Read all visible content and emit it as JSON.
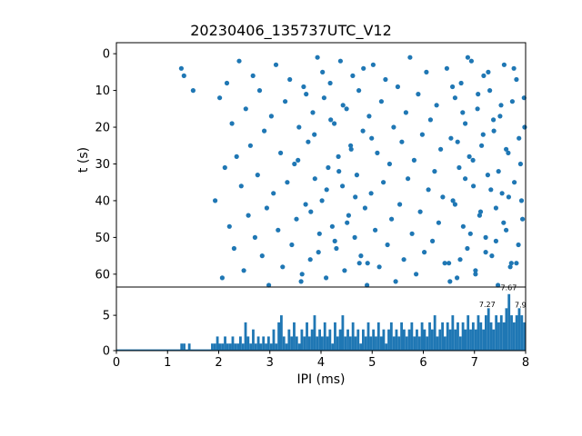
{
  "figure": {
    "title": "20230406_135737UTC_V12"
  },
  "chart_data": [
    {
      "type": "scatter",
      "title": "20230406_135737UTC_V12",
      "xlabel": "",
      "ylabel": "t (s)",
      "xlim": [
        0,
        8
      ],
      "ylim": [
        -3,
        63.5
      ],
      "y_inverted": true,
      "grid": false,
      "legend": "none",
      "marker_color": "#1f77b4",
      "yticks": [
        0,
        10,
        20,
        30,
        40,
        50,
        60
      ],
      "x": [
        1.27,
        1.32,
        1.5,
        1.93,
        2.02,
        2.07,
        2.12,
        2.16,
        2.21,
        2.26,
        2.3,
        2.35,
        2.4,
        2.44,
        2.49,
        2.53,
        2.58,
        2.62,
        2.67,
        2.71,
        2.76,
        2.8,
        2.85,
        2.89,
        2.94,
        2.98,
        3.03,
        3.07,
        3.12,
        3.16,
        3.21,
        3.25,
        3.3,
        3.34,
        3.39,
        3.43,
        3.48,
        3.52,
        3.57,
        3.61,
        3.66,
        3.7,
        3.75,
        3.79,
        3.84,
        3.88,
        3.93,
        3.97,
        3.55,
        3.63,
        3.71,
        3.8,
        3.87,
        3.95,
        4.03,
        4.11,
        4.19,
        4.27,
        4.35,
        4.43,
        4.51,
        4.59,
        4.67,
        4.75,
        4.83,
        4.91,
        4.99,
        4.02,
        4.06,
        4.1,
        4.14,
        4.18,
        4.22,
        4.26,
        4.3,
        4.34,
        4.38,
        4.42,
        4.46,
        4.5,
        4.54,
        4.58,
        4.62,
        4.66,
        4.7,
        4.74,
        4.78,
        4.82,
        4.86,
        4.9,
        4.94,
        4.98,
        5.02,
        5.06,
        5.1,
        5.14,
        5.18,
        5.22,
        5.26,
        5.3,
        5.34,
        5.38,
        5.42,
        5.46,
        5.5,
        5.54,
        5.58,
        5.62,
        5.66,
        5.7,
        5.74,
        5.78,
        5.82,
        5.86,
        5.9,
        5.94,
        5.98,
        6.02,
        6.06,
        6.1,
        6.14,
        6.18,
        6.22,
        6.26,
        6.3,
        6.34,
        6.38,
        6.42,
        6.46,
        6.5,
        6.54,
        6.58,
        6.62,
        6.66,
        6.7,
        6.74,
        6.78,
        6.82,
        6.86,
        6.9,
        6.94,
        6.98,
        7.02,
        7.06,
        7.1,
        7.14,
        7.18,
        7.22,
        7.26,
        7.3,
        7.34,
        7.38,
        7.42,
        7.46,
        7.5,
        7.54,
        7.58,
        7.62,
        7.66,
        7.7,
        7.74,
        7.78,
        7.82,
        7.86,
        7.9,
        7.94,
        7.98,
        6.52,
        6.57,
        6.62,
        6.67,
        6.72,
        6.77,
        6.82,
        6.87,
        6.92,
        6.97,
        7.02,
        7.07,
        7.12,
        7.17,
        7.22,
        7.27,
        7.32,
        7.37,
        7.42,
        7.47,
        7.52,
        7.57,
        7.62,
        7.67,
        7.72,
        7.77,
        7.82,
        7.87,
        7.92,
        7.97
      ],
      "y": [
        4,
        6,
        10,
        40,
        12,
        61,
        31,
        8,
        47,
        19,
        53,
        28,
        2,
        36,
        59,
        15,
        44,
        25,
        6,
        50,
        33,
        10,
        55,
        21,
        42,
        63,
        17,
        38,
        3,
        48,
        27,
        58,
        13,
        35,
        7,
        52,
        30,
        45,
        20,
        62,
        9,
        41,
        24,
        56,
        16,
        34,
        1,
        49,
        29,
        60,
        11,
        43,
        22,
        54,
        5,
        37,
        18,
        51,
        32,
        14,
        46,
        26,
        39,
        57,
        4,
        57,
        23,
        40,
        12,
        61,
        31,
        8,
        47,
        19,
        53,
        28,
        2,
        36,
        59,
        15,
        44,
        25,
        6,
        50,
        33,
        10,
        55,
        21,
        42,
        63,
        17,
        38,
        3,
        48,
        27,
        58,
        13,
        35,
        7,
        52,
        30,
        45,
        20,
        62,
        9,
        41,
        24,
        56,
        16,
        34,
        1,
        49,
        29,
        60,
        11,
        43,
        22,
        54,
        5,
        37,
        18,
        51,
        32,
        14,
        46,
        26,
        39,
        57,
        4,
        57,
        23,
        40,
        12,
        61,
        31,
        8,
        47,
        19,
        53,
        28,
        2,
        36,
        59,
        15,
        44,
        25,
        6,
        50,
        33,
        10,
        55,
        21,
        42,
        63,
        17,
        38,
        3,
        48,
        27,
        58,
        13,
        35,
        7,
        52,
        30,
        45,
        20,
        62,
        9,
        41,
        24,
        56,
        16,
        34,
        1,
        49,
        29,
        60,
        11,
        43,
        22,
        54,
        5,
        37,
        18,
        51,
        32,
        14,
        46,
        26,
        39,
        57,
        4,
        57,
        23,
        40,
        12
      ]
    },
    {
      "type": "bar",
      "title": "",
      "xlabel": "IPI (ms)",
      "ylabel": "",
      "xlim": [
        0,
        8
      ],
      "ylim": [
        0,
        9
      ],
      "grid": false,
      "legend": "none",
      "bar_color": "#1f77b4",
      "bin_start": 0,
      "bin_width": 0.05,
      "xticks": [
        0,
        1,
        2,
        3,
        4,
        5,
        6,
        7,
        8
      ],
      "yticks": [
        0,
        5
      ],
      "values": [
        0,
        0,
        0,
        0,
        0,
        0,
        0,
        0,
        0,
        0,
        0,
        0,
        0,
        0,
        0,
        0,
        0,
        0,
        0,
        0,
        0,
        0,
        0,
        0,
        0,
        1,
        1,
        0,
        1,
        0,
        0,
        0,
        0,
        0,
        0,
        0,
        0,
        1,
        1,
        2,
        1,
        1,
        2,
        1,
        1,
        2,
        1,
        1,
        2,
        1,
        4,
        2,
        1,
        3,
        1,
        2,
        1,
        2,
        1,
        2,
        1,
        3,
        1,
        4,
        5,
        2,
        1,
        3,
        2,
        4,
        2,
        1,
        3,
        2,
        4,
        2,
        3,
        5,
        2,
        3,
        2,
        4,
        2,
        3,
        1,
        4,
        2,
        3,
        5,
        2,
        3,
        2,
        4,
        2,
        3,
        1,
        3,
        2,
        4,
        2,
        3,
        2,
        4,
        2,
        3,
        1,
        3,
        4,
        2,
        3,
        2,
        4,
        3,
        2,
        3,
        4,
        2,
        3,
        2,
        4,
        3,
        2,
        4,
        3,
        5,
        2,
        3,
        4,
        2,
        4,
        3,
        5,
        3,
        4,
        2,
        4,
        3,
        5,
        3,
        4,
        3,
        5,
        4,
        3,
        5,
        6,
        4,
        3,
        5,
        4,
        5,
        4,
        6,
        8,
        5,
        4,
        5,
        6,
        5,
        4
      ],
      "annotations": [
        {
          "x": 7.67,
          "y": 8.55,
          "label": "7.67"
        },
        {
          "x": 7.25,
          "y": 6.2,
          "label": "7.27"
        },
        {
          "x": 7.9,
          "y": 6.1,
          "label": "7.9"
        }
      ]
    }
  ]
}
